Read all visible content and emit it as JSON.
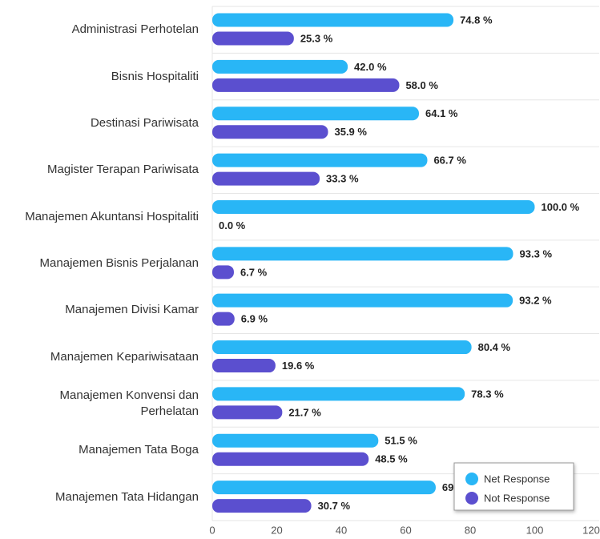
{
  "chart_data": {
    "type": "bar",
    "orientation": "horizontal",
    "categories": [
      "Administrasi Perhotelan",
      "Bisnis Hospitaliti",
      "Destinasi Pariwisata",
      "Magister Terapan Pariwisata",
      "Manajemen Akuntansi Hospitaliti",
      "Manajemen Bisnis Perjalanan",
      "Manajemen Divisi Kamar",
      "Manajemen Kepariwisataan",
      "Manajemen Konvensi dan Perhelatan",
      "Manajemen Tata Boga",
      "Manajemen Tata Hidangan"
    ],
    "series": [
      {
        "name": "Net Response",
        "color": "#29b6f6",
        "values": [
          74.8,
          42.0,
          64.1,
          66.7,
          100.0,
          93.3,
          93.2,
          80.4,
          78.3,
          51.5,
          69.3
        ],
        "value_labels": [
          "74.8 %",
          "42.0 %",
          "64.1 %",
          "66.7 %",
          "100.0 %",
          "93.3 %",
          "93.2 %",
          "80.4 %",
          "78.3 %",
          "51.5 %",
          "69.3 %"
        ]
      },
      {
        "name": "Not Response",
        "color": "#5b4fcf",
        "values": [
          25.3,
          58.0,
          35.9,
          33.3,
          0.0,
          6.7,
          6.9,
          19.6,
          21.7,
          48.5,
          30.7
        ],
        "value_labels": [
          "25.3 %",
          "58.0 %",
          "35.9 %",
          "33.3 %",
          "0.0 %",
          "6.7 %",
          "6.9 %",
          "19.6 %",
          "21.7 %",
          "48.5 %",
          "30.7 %"
        ]
      }
    ],
    "xlim": [
      0,
      120
    ],
    "xticks": [
      0,
      20,
      40,
      60,
      80,
      100,
      120
    ],
    "legend": "bottom-right"
  }
}
